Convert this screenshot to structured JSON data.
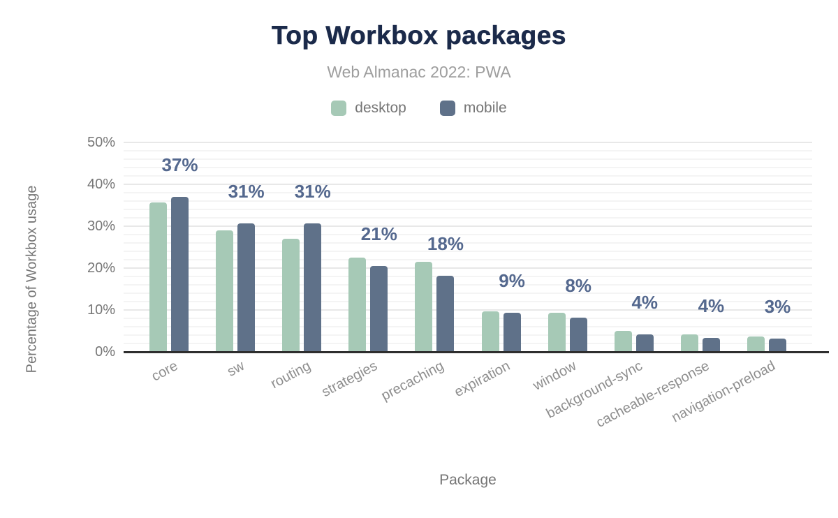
{
  "title": "Top Workbox packages",
  "subtitle": "Web Almanac 2022: PWA",
  "legend": {
    "position": "top",
    "items": [
      {
        "label": "desktop",
        "color": "#a6c9b6"
      },
      {
        "label": "mobile",
        "color": "#5f7189"
      }
    ]
  },
  "chart_data": {
    "type": "bar",
    "title": "Top Workbox packages",
    "subtitle": "Web Almanac 2022: PWA",
    "xlabel": "Package",
    "ylabel": "Percentage of Workbox usage",
    "ylim": [
      0,
      50
    ],
    "yticks": [
      {
        "value": 0,
        "label": "0%"
      },
      {
        "value": 10,
        "label": "10%"
      },
      {
        "value": 20,
        "label": "20%"
      },
      {
        "value": 30,
        "label": "30%"
      },
      {
        "value": 40,
        "label": "40%"
      },
      {
        "value": 50,
        "label": "50%"
      }
    ],
    "grid": {
      "major_interval_pct": 10,
      "minor_interval_pct": 2,
      "horizontal": true
    },
    "categories": [
      "core",
      "sw",
      "routing",
      "strategies",
      "precaching",
      "expiration",
      "window",
      "background-sync",
      "cacheable-response",
      "navigation-preload"
    ],
    "series": [
      {
        "name": "desktop",
        "color": "#a6c9b6",
        "values": [
          35.6,
          29.0,
          27.0,
          22.5,
          21.5,
          9.7,
          9.4,
          5.0,
          4.1,
          3.7
        ]
      },
      {
        "name": "mobile",
        "color": "#5f7189",
        "values": [
          37.0,
          30.6,
          30.6,
          20.5,
          18.1,
          9.3,
          8.1,
          4.2,
          3.4,
          3.1
        ]
      }
    ],
    "bar_labels": {
      "series": "mobile",
      "labels": [
        "37%",
        "31%",
        "31%",
        "21%",
        "18%",
        "9%",
        "8%",
        "4%",
        "4%",
        "3%"
      ]
    }
  },
  "colors": {
    "title": "#1b2a4a",
    "subtitle": "#9e9e9e",
    "axis_text": "#757575",
    "category_text": "#8e8e8e",
    "value_label": "#54688e",
    "baseline": "#2e2e2e",
    "grid_major": "#e8e8e8",
    "grid_minor": "#f4f4f4",
    "desktop": "#a6c9b6",
    "mobile": "#5f7189"
  }
}
